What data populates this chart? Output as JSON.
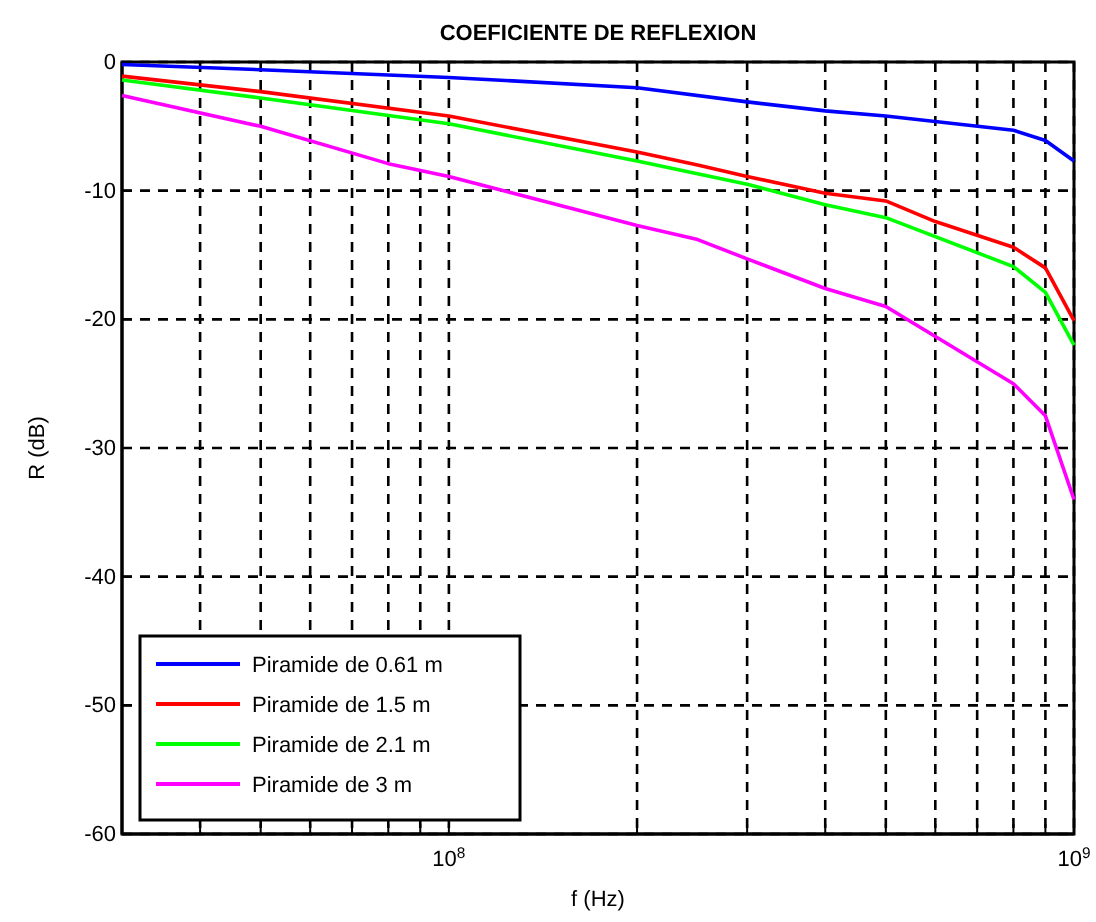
{
  "chart_data": {
    "type": "line",
    "title": "COEFICIENTE DE REFLEXION",
    "xlabel": "f (Hz)",
    "ylabel": "R (dB)",
    "log": "x",
    "xlim": [
      30000000,
      1000000000
    ],
    "ylim": [
      -60,
      0
    ],
    "xticks": [
      {
        "value": 40000000,
        "label": null
      },
      {
        "value": 50000000,
        "label": null
      },
      {
        "value": 60000000,
        "label": null
      },
      {
        "value": 70000000,
        "label": null
      },
      {
        "value": 80000000,
        "label": null
      },
      {
        "value": 90000000,
        "label": null
      },
      {
        "value": 100000000,
        "label": "10$^{8}$"
      },
      {
        "value": 200000000,
        "label": null
      },
      {
        "value": 300000000,
        "label": null
      },
      {
        "value": 400000000,
        "label": null
      },
      {
        "value": 500000000,
        "label": null
      },
      {
        "value": 600000000,
        "label": null
      },
      {
        "value": 700000000,
        "label": null
      },
      {
        "value": 800000000,
        "label": null
      },
      {
        "value": 900000000,
        "label": null
      },
      {
        "value": 1000000000,
        "label": "10$^{9}$"
      }
    ],
    "yticks": [
      0,
      -10,
      -20,
      -30,
      -40,
      -50,
      -60
    ],
    "grid": true,
    "legend": "bottom left",
    "line_style": "solid",
    "marker": "none",
    "series": [
      {
        "name": "Piramide de 0.61 m",
        "color": "#0000ff",
        "x": [
          30000000,
          50000000,
          100000000,
          200000000,
          300000000,
          400000000,
          500000000,
          800000000,
          900000000,
          1000000000
        ],
        "values": [
          -0.2,
          -0.6,
          -1.2,
          -2,
          -3.1,
          -3.8,
          -4.2,
          -5.3,
          -6.1,
          -7.7
        ]
      },
      {
        "name": "Piramide de 1.5 m",
        "color": "#ff0000",
        "x": [
          30000000,
          50000000,
          100000000,
          200000000,
          250000000,
          300000000,
          400000000,
          500000000,
          600000000,
          800000000,
          900000000,
          1000000000
        ],
        "values": [
          -1.1,
          -2.3,
          -4.2,
          -7,
          -8,
          -8.9,
          -10.2,
          -10.8,
          -12.4,
          -14.4,
          -16,
          -20.1
        ]
      },
      {
        "name": "Piramide de 2.1 m",
        "color": "#00ff00",
        "x": [
          30000000,
          50000000,
          100000000,
          200000000,
          300000000,
          400000000,
          500000000,
          800000000,
          900000000,
          1000000000
        ],
        "values": [
          -1.4,
          -2.8,
          -4.8,
          -7.7,
          -9.5,
          -11.1,
          -12.1,
          -15.9,
          -17.9,
          -22
        ]
      },
      {
        "name": "Piramide de 3 m",
        "color": "#ff00ff",
        "x": [
          30000000,
          50000000,
          80000000,
          100000000,
          200000000,
          250000000,
          300000000,
          400000000,
          500000000,
          800000000,
          900000000,
          1000000000
        ],
        "values": [
          -2.6,
          -5,
          -7.9,
          -8.9,
          -12.7,
          -13.8,
          -15.3,
          -17.6,
          -19,
          -25,
          -27.5,
          -34
        ]
      }
    ]
  }
}
